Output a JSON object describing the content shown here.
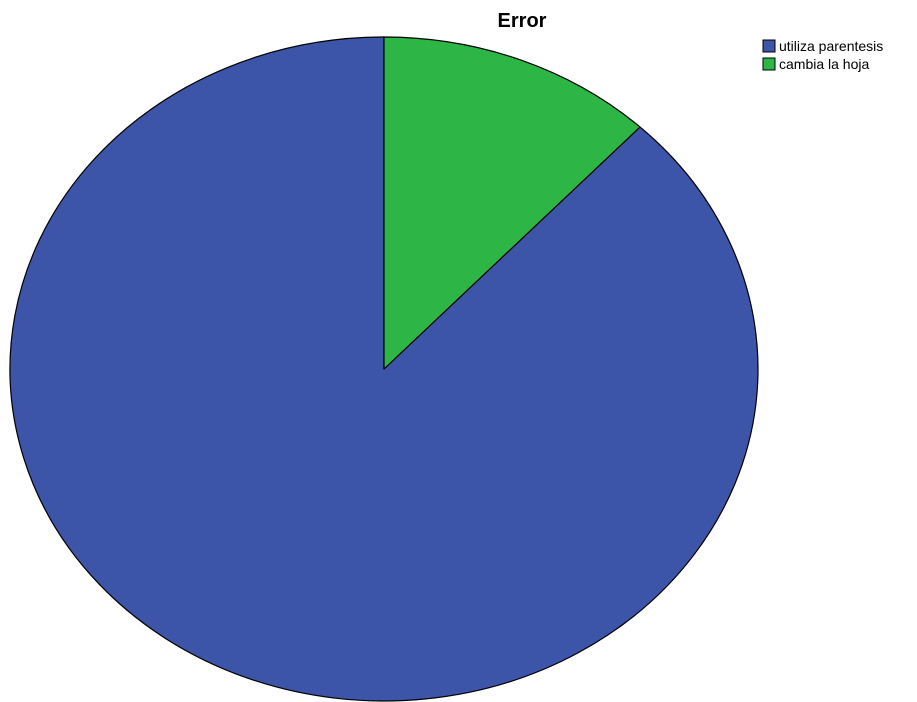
{
  "chart_data": {
    "type": "pie",
    "title": "Error",
    "legend_position": "top-right",
    "start_angle": "top",
    "direction": "counterclockwise",
    "slices": [
      {
        "label": "utiliza parentesis",
        "value": 88,
        "color": "#3d55a8"
      },
      {
        "label": "cambia la hoja",
        "value": 12,
        "color": "#2db646"
      }
    ]
  }
}
